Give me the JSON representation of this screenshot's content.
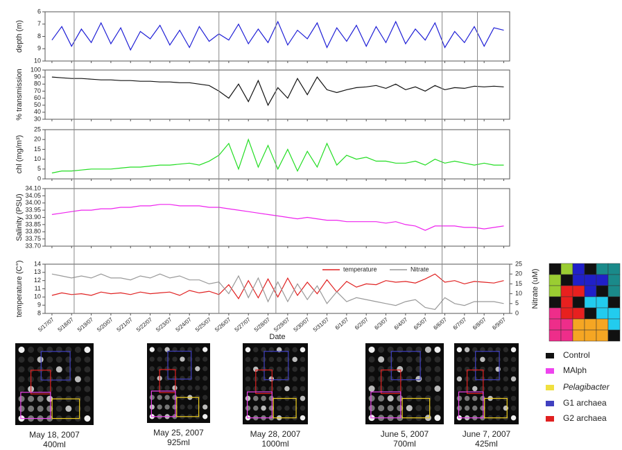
{
  "chart_data": [
    {
      "type": "line",
      "ylabel": "depth (m)",
      "ylim": [
        10,
        6
      ],
      "yticks": [
        6,
        7,
        8,
        9,
        10
      ],
      "xlim": [
        -0.35,
        23.3
      ],
      "x": [
        0,
        0.5,
        1,
        1.5,
        2,
        2.5,
        3,
        3.5,
        4,
        4.5,
        5,
        5.5,
        6,
        6.5,
        7,
        7.5,
        8,
        8.5,
        9,
        9.5,
        10,
        10.5,
        11,
        11.5,
        12,
        12.5,
        13,
        13.5,
        14,
        14.5,
        15,
        15.5,
        16,
        16.5,
        17,
        17.5,
        18,
        18.5,
        19,
        19.5,
        20,
        20.5,
        21,
        21.5,
        22,
        22.5,
        23
      ],
      "color": "#1f1fd6",
      "values": [
        8.3,
        7.2,
        8.8,
        7.4,
        8.5,
        6.9,
        8.6,
        7.3,
        9.1,
        7.6,
        8.2,
        7.1,
        8.7,
        7.5,
        8.9,
        7.2,
        8.4,
        7.8,
        8.3,
        7.0,
        8.6,
        7.4,
        8.5,
        6.8,
        8.7,
        7.5,
        8.2,
        6.9,
        8.9,
        7.3,
        8.4,
        7.1,
        8.8,
        7.2,
        8.5,
        6.8,
        8.6,
        7.4,
        8.3,
        6.9,
        8.9,
        7.6,
        8.5,
        7.2,
        8.8,
        7.3,
        7.5
      ]
    },
    {
      "type": "line",
      "ylabel": "% transmission",
      "ylim": [
        30,
        100
      ],
      "yticks": [
        30,
        40,
        50,
        60,
        70,
        80,
        90,
        100
      ],
      "xlim": [
        -0.35,
        23.3
      ],
      "x": [
        0,
        0.5,
        1,
        1.5,
        2,
        2.5,
        3,
        3.5,
        4,
        4.5,
        5,
        5.5,
        6,
        6.5,
        7,
        7.5,
        8,
        8.5,
        9,
        9.5,
        10,
        10.5,
        11,
        11.5,
        12,
        12.5,
        13,
        13.5,
        14,
        14.5,
        15,
        15.5,
        16,
        16.5,
        17,
        17.5,
        18,
        18.5,
        19,
        19.5,
        20,
        20.5,
        21,
        21.5,
        22,
        22.5,
        23
      ],
      "color": "#111111",
      "values": [
        90,
        89,
        88,
        88,
        87,
        86,
        86,
        85,
        85,
        84,
        84,
        83,
        83,
        82,
        82,
        80,
        78,
        70,
        60,
        80,
        55,
        85,
        50,
        75,
        60,
        88,
        65,
        90,
        72,
        68,
        72,
        75,
        76,
        78,
        74,
        80,
        72,
        76,
        70,
        78,
        72,
        75,
        74,
        77,
        76,
        77,
        76
      ]
    },
    {
      "type": "line",
      "ylabel": "chl (mg/m³)",
      "ylim": [
        0,
        25
      ],
      "yticks": [
        0,
        5,
        10,
        15,
        20,
        25
      ],
      "xlim": [
        -0.35,
        23.3
      ],
      "x": [
        0,
        0.5,
        1,
        1.5,
        2,
        2.5,
        3,
        3.5,
        4,
        4.5,
        5,
        5.5,
        6,
        6.5,
        7,
        7.5,
        8,
        8.5,
        9,
        9.5,
        10,
        10.5,
        11,
        11.5,
        12,
        12.5,
        13,
        13.5,
        14,
        14.5,
        15,
        15.5,
        16,
        16.5,
        17,
        17.5,
        18,
        18.5,
        19,
        19.5,
        20,
        20.5,
        21,
        21.5,
        22,
        22.5,
        23
      ],
      "color": "#22dd22",
      "values": [
        3,
        4,
        4,
        4.5,
        5,
        5,
        5,
        5.5,
        6,
        6,
        6.5,
        7,
        7,
        7.5,
        8,
        7,
        9,
        12,
        18,
        5,
        20,
        6,
        17,
        5,
        15,
        4,
        14,
        6,
        18,
        7,
        12,
        10,
        11,
        9,
        9,
        8,
        8,
        9,
        7,
        10,
        8,
        9,
        8,
        7,
        8,
        7,
        7
      ]
    },
    {
      "type": "line",
      "ylabel": "Salinity (PSU)",
      "ylim": [
        33.7,
        34.1
      ],
      "yticks": [
        {
          "value": 33.7,
          "label": "33.70"
        },
        {
          "value": 33.75,
          "label": "33.75"
        },
        {
          "value": 33.8,
          "label": "33.80"
        },
        {
          "value": 33.85,
          "label": "33.85"
        },
        {
          "value": 33.9,
          "label": "33.90"
        },
        {
          "value": 33.95,
          "label": "33.95"
        },
        {
          "value": 34.0,
          "label": "34.00"
        },
        {
          "value": 34.05,
          "label": "34.05"
        },
        {
          "value": 34.1,
          "label": "34.10"
        }
      ],
      "xlim": [
        -0.35,
        23.3
      ],
      "x": [
        0,
        0.5,
        1,
        1.5,
        2,
        2.5,
        3,
        3.5,
        4,
        4.5,
        5,
        5.5,
        6,
        6.5,
        7,
        7.5,
        8,
        8.5,
        9,
        9.5,
        10,
        10.5,
        11,
        11.5,
        12,
        12.5,
        13,
        13.5,
        14,
        14.5,
        15,
        15.5,
        16,
        16.5,
        17,
        17.5,
        18,
        18.5,
        19,
        19.5,
        20,
        20.5,
        21,
        21.5,
        22,
        22.5,
        23
      ],
      "color": "#ee22ee",
      "values": [
        33.92,
        33.93,
        33.94,
        33.95,
        33.95,
        33.96,
        33.96,
        33.97,
        33.97,
        33.98,
        33.98,
        33.99,
        33.99,
        33.98,
        33.98,
        33.98,
        33.97,
        33.97,
        33.96,
        33.95,
        33.94,
        33.93,
        33.92,
        33.91,
        33.9,
        33.89,
        33.9,
        33.89,
        33.88,
        33.88,
        33.87,
        33.87,
        33.87,
        33.87,
        33.86,
        33.87,
        33.85,
        33.84,
        33.81,
        33.84,
        33.84,
        33.84,
        33.83,
        33.83,
        33.82,
        33.83,
        33.84
      ]
    },
    {
      "type": "line",
      "ylabel": "temperature (C°)",
      "y2label": "Nitrate (uM)",
      "xlabel": "Date",
      "ylim": [
        8,
        14
      ],
      "yticks": [
        8,
        9,
        10,
        11,
        12,
        13,
        14
      ],
      "y2lim": [
        0,
        25
      ],
      "y2ticks": [
        0,
        5,
        10,
        15,
        20,
        25
      ],
      "xlim": [
        -0.35,
        23.3
      ],
      "legend": "top",
      "xticks": [
        {
          "value": 0,
          "label": "5/17/07"
        },
        {
          "value": 1,
          "label": "5/18/07"
        },
        {
          "value": 2,
          "label": "5/19/07"
        },
        {
          "value": 3,
          "label": "5/20/07"
        },
        {
          "value": 4,
          "label": "5/21/07"
        },
        {
          "value": 5,
          "label": "5/22/07"
        },
        {
          "value": 6,
          "label": "5/23/07"
        },
        {
          "value": 7,
          "label": "5/24/07"
        },
        {
          "value": 8,
          "label": "5/25/07"
        },
        {
          "value": 9,
          "label": "5/26/07"
        },
        {
          "value": 10,
          "label": "5/27/07"
        },
        {
          "value": 11,
          "label": "5/28/07"
        },
        {
          "value": 12,
          "label": "5/29/07"
        },
        {
          "value": 13,
          "label": "5/30/07"
        },
        {
          "value": 14,
          "label": "5/31/07"
        },
        {
          "value": 15,
          "label": "6/1/07"
        },
        {
          "value": 16,
          "label": "6/2/07"
        },
        {
          "value": 17,
          "label": "6/3/07"
        },
        {
          "value": 18,
          "label": "6/4/07"
        },
        {
          "value": 19,
          "label": "6/5/07"
        },
        {
          "value": 20,
          "label": "6/6/07"
        },
        {
          "value": 21,
          "label": "6/7/07"
        },
        {
          "value": 22,
          "label": "6/8/07"
        },
        {
          "value": 23,
          "label": "6/9/07"
        }
      ],
      "x": [
        0,
        0.5,
        1,
        1.5,
        2,
        2.5,
        3,
        3.5,
        4,
        4.5,
        5,
        5.5,
        6,
        6.5,
        7,
        7.5,
        8,
        8.5,
        9,
        9.5,
        10,
        10.5,
        11,
        11.5,
        12,
        12.5,
        13,
        13.5,
        14,
        14.5,
        15,
        15.5,
        16,
        16.5,
        17,
        17.5,
        18,
        18.5,
        19,
        19.5,
        20,
        20.5,
        21,
        21.5,
        22,
        22.5,
        23
      ],
      "series": [
        {
          "name": "temperature",
          "color": "#e02020",
          "values": [
            10.2,
            10.5,
            10.3,
            10.4,
            10.2,
            10.6,
            10.4,
            10.5,
            10.3,
            10.6,
            10.4,
            10.5,
            10.6,
            10.2,
            10.8,
            10.5,
            10.7,
            10.3,
            11.5,
            9.8,
            12,
            9.9,
            12.2,
            10,
            12.3,
            10.2,
            11.8,
            10.4,
            12.1,
            10.6,
            11.9,
            11.2,
            11.6,
            11.5,
            12,
            11.8,
            11.9,
            11.7,
            12.2,
            12.8,
            11.8,
            12,
            11.6,
            11.9,
            11.8,
            11.7,
            12
          ]
        },
        {
          "name": "Nitrate",
          "color": "#999999",
          "axis": "y2",
          "values": [
            20,
            19,
            18,
            19,
            18,
            20,
            18,
            18,
            17,
            19,
            18,
            20,
            18,
            19,
            17,
            17,
            15,
            16,
            10,
            19,
            8,
            18,
            6,
            16,
            6,
            15,
            7,
            14,
            5,
            11,
            6,
            8,
            7,
            6,
            5,
            4,
            6,
            7,
            3,
            2,
            8,
            5,
            4,
            6,
            6,
            6,
            5
          ]
        }
      ]
    }
  ],
  "samples": [
    {
      "x": 1.13,
      "date": "May 18, 2007",
      "volume": "400ml"
    },
    {
      "x": 8.5,
      "date": "May 25, 2007",
      "volume": "925ml"
    },
    {
      "x": 11.4,
      "date": "May 28, 2007",
      "volume": "1000ml"
    },
    {
      "x": 19.86,
      "date": "June 5, 2007",
      "volume": "700ml"
    },
    {
      "x": 21.66,
      "date": "June 7, 2007",
      "volume": "425ml"
    }
  ],
  "probe_legend": [
    "Control",
    "MAlph",
    "Pelagibacter",
    "G1 archaea",
    "G2 archaea"
  ]
}
